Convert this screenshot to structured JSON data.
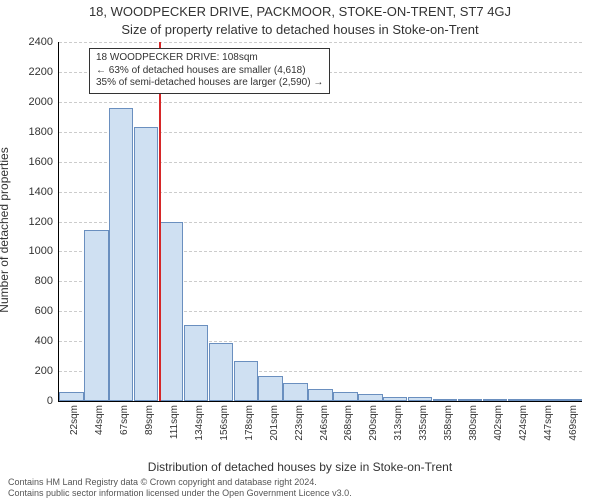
{
  "titles": {
    "address": "18, WOODPECKER DRIVE, PACKMOOR, STOKE-ON-TRENT, ST7 4GJ",
    "subtitle": "Size of property relative to detached houses in Stoke-on-Trent"
  },
  "axes": {
    "ylabel": "Number of detached properties",
    "xlabel": "Distribution of detached houses by size in Stoke-on-Trent",
    "ylim_max": 2400,
    "ytick_step": 200,
    "grid_color": "#cccccc"
  },
  "style": {
    "bar_fill": "#cfe0f2",
    "bar_stroke": "#6a8fbf",
    "marker_color": "#d62728",
    "bg": "#ffffff"
  },
  "marker": {
    "category_index": 4,
    "box": {
      "line1": "18 WOODPECKER DRIVE: 108sqm",
      "line2": "← 63% of detached houses are smaller (4,618)",
      "line3": "35% of semi-detached houses are larger (2,590) →"
    }
  },
  "categories": [
    "22sqm",
    "44sqm",
    "67sqm",
    "89sqm",
    "111sqm",
    "134sqm",
    "156sqm",
    "178sqm",
    "201sqm",
    "223sqm",
    "246sqm",
    "268sqm",
    "290sqm",
    "313sqm",
    "335sqm",
    "358sqm",
    "380sqm",
    "402sqm",
    "424sqm",
    "447sqm",
    "469sqm"
  ],
  "values": [
    60,
    1140,
    1960,
    1830,
    1200,
    510,
    390,
    270,
    170,
    120,
    80,
    60,
    50,
    30,
    25,
    15,
    15,
    10,
    5,
    5,
    5
  ],
  "footer": {
    "line1": "Contains HM Land Registry data © Crown copyright and database right 2024.",
    "line2": "Contains public sector information licensed under the Open Government Licence v3.0."
  }
}
